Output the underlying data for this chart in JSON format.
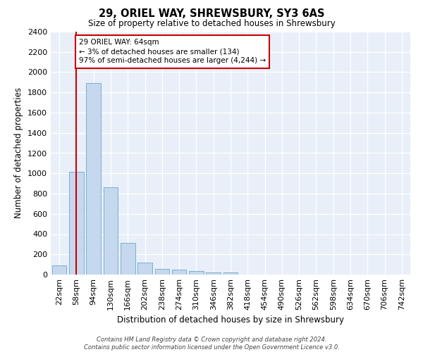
{
  "title": "29, ORIEL WAY, SHREWSBURY, SY3 6AS",
  "subtitle": "Size of property relative to detached houses in Shrewsbury",
  "xlabel": "Distribution of detached houses by size in Shrewsbury",
  "ylabel": "Number of detached properties",
  "bar_labels": [
    "22sqm",
    "58sqm",
    "94sqm",
    "130sqm",
    "166sqm",
    "202sqm",
    "238sqm",
    "274sqm",
    "310sqm",
    "346sqm",
    "382sqm",
    "418sqm",
    "454sqm",
    "490sqm",
    "526sqm",
    "562sqm",
    "598sqm",
    "634sqm",
    "670sqm",
    "706sqm",
    "742sqm"
  ],
  "bar_values": [
    90,
    1015,
    1890,
    860,
    315,
    115,
    58,
    48,
    35,
    22,
    20,
    0,
    0,
    0,
    0,
    0,
    0,
    0,
    0,
    0,
    0
  ],
  "bar_color": "#c5d8ee",
  "bar_edge_color": "#7aafd4",
  "vline_color": "#cc0000",
  "annotation_text": "29 ORIEL WAY: 64sqm\n← 3% of detached houses are smaller (134)\n97% of semi-detached houses are larger (4,244) →",
  "annotation_box_color": "#ffffff",
  "annotation_box_edge_color": "#cc0000",
  "ylim": [
    0,
    2400
  ],
  "yticks": [
    0,
    200,
    400,
    600,
    800,
    1000,
    1200,
    1400,
    1600,
    1800,
    2000,
    2200,
    2400
  ],
  "background_color": "#e8eff8",
  "grid_color": "#ffffff",
  "footer_line1": "Contains HM Land Registry data © Crown copyright and database right 2024.",
  "footer_line2": "Contains public sector information licensed under the Open Government Licence v3.0."
}
